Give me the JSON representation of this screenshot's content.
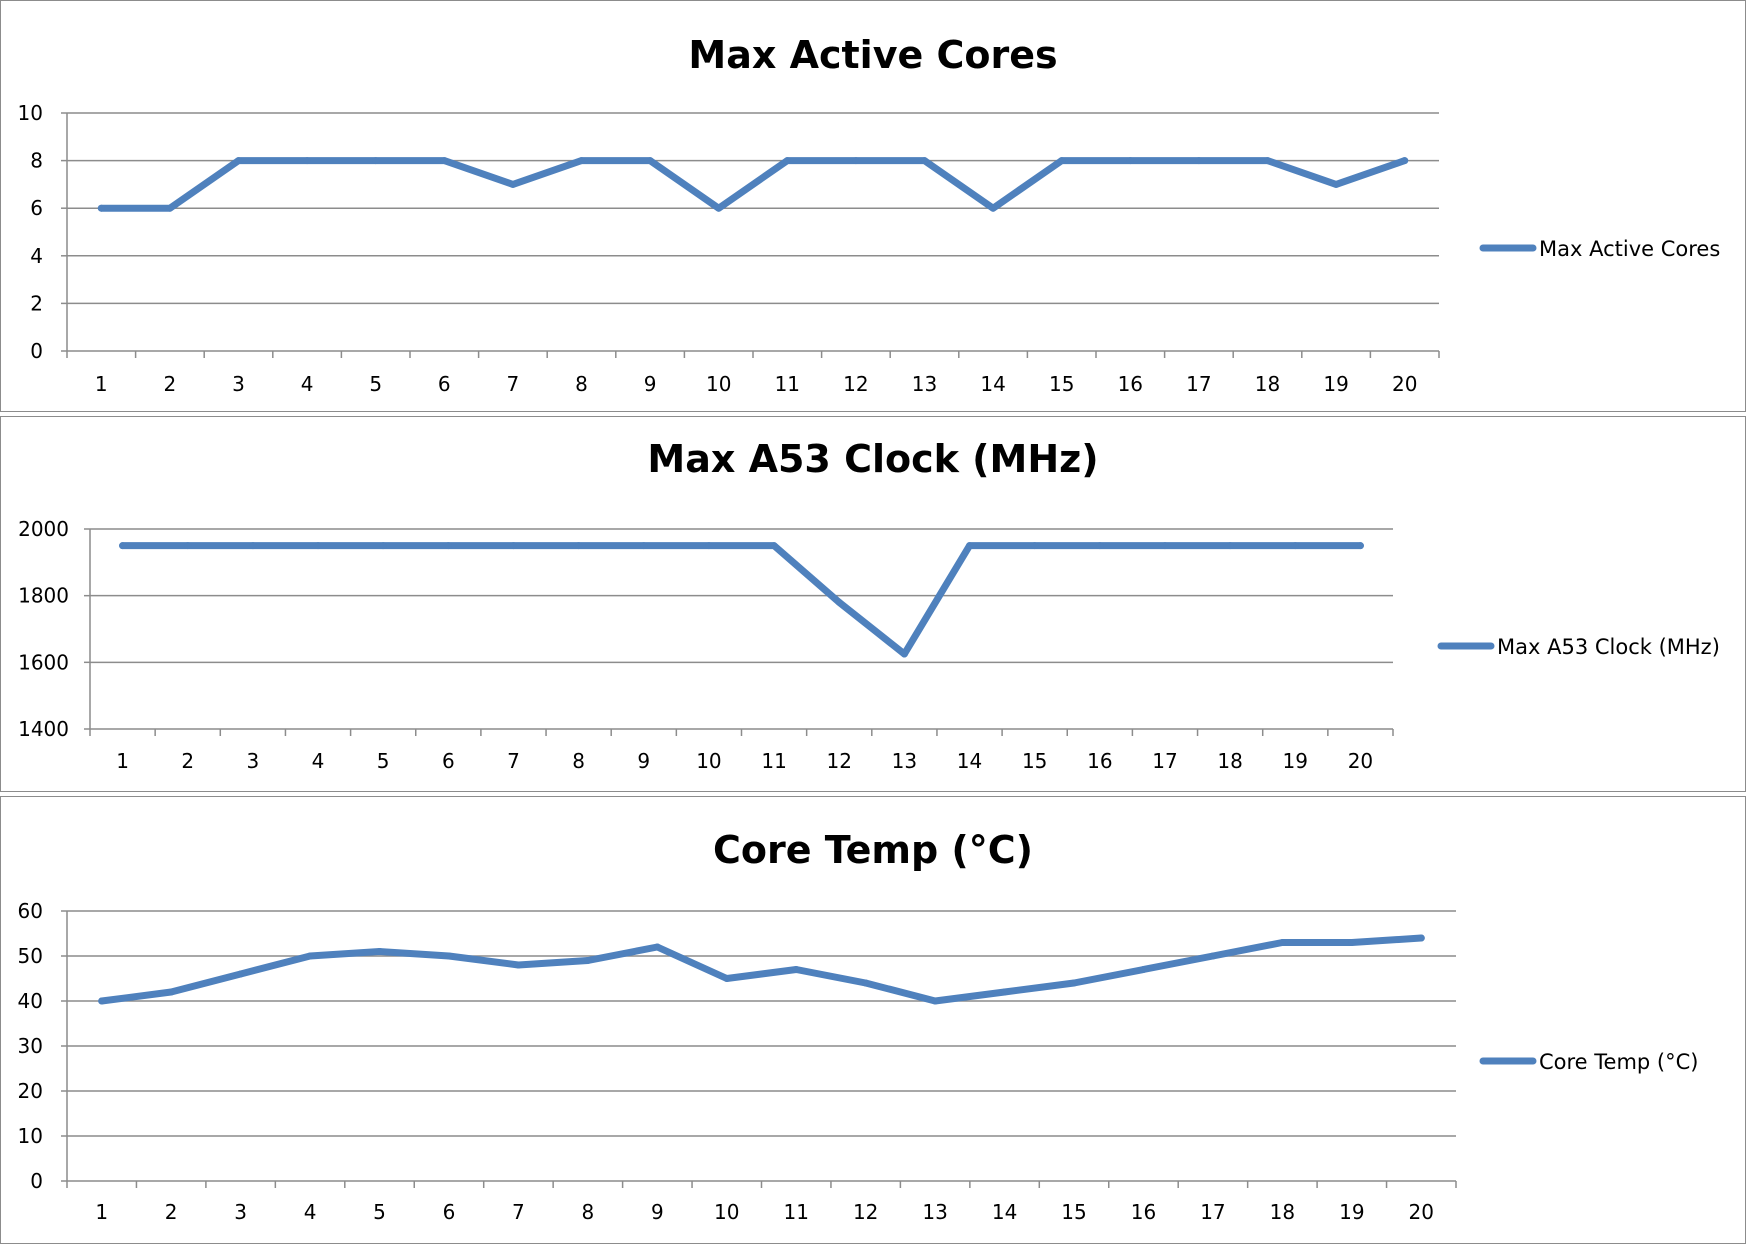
{
  "chart_data": [
    {
      "type": "line",
      "title": "Max Active Cores",
      "categories": [
        "1",
        "2",
        "3",
        "4",
        "5",
        "6",
        "7",
        "8",
        "9",
        "10",
        "11",
        "12",
        "13",
        "14",
        "15",
        "16",
        "17",
        "18",
        "19",
        "20"
      ],
      "series": [
        {
          "name": "Max Active Cores",
          "values": [
            6,
            6,
            8,
            8,
            8,
            8,
            7,
            8,
            8,
            6,
            8,
            8,
            8,
            6,
            8,
            8,
            8,
            8,
            7,
            8
          ]
        }
      ],
      "yticks": [
        "0",
        "2",
        "4",
        "6",
        "8",
        "10"
      ],
      "ylim": [
        0,
        10
      ],
      "grid": true,
      "legend": "right"
    },
    {
      "type": "line",
      "title": "Max A53 Clock (MHz)",
      "categories": [
        "1",
        "2",
        "3",
        "4",
        "5",
        "6",
        "7",
        "8",
        "9",
        "10",
        "11",
        "12",
        "13",
        "14",
        "15",
        "16",
        "17",
        "18",
        "19",
        "20"
      ],
      "series": [
        {
          "name": "Max A53 Clock (MHz)",
          "values": [
            1950,
            1950,
            1950,
            1950,
            1950,
            1950,
            1950,
            1950,
            1950,
            1950,
            1950,
            1780,
            1625,
            1950,
            1950,
            1950,
            1950,
            1950,
            1950,
            1950
          ]
        }
      ],
      "yticks": [
        "1400",
        "1600",
        "1800",
        "2000"
      ],
      "ylim": [
        1400,
        2000
      ],
      "grid": true,
      "legend": "right"
    },
    {
      "type": "line",
      "title": "Core Temp (°C)",
      "categories": [
        "1",
        "2",
        "3",
        "4",
        "5",
        "6",
        "7",
        "8",
        "9",
        "10",
        "11",
        "12",
        "13",
        "14",
        "15",
        "16",
        "17",
        "18",
        "19",
        "20"
      ],
      "series": [
        {
          "name": "Core Temp (°C)",
          "values": [
            40,
            42,
            46,
            50,
            51,
            50,
            48,
            49,
            52,
            45,
            47,
            44,
            40,
            42,
            44,
            47,
            50,
            53,
            53,
            54
          ]
        }
      ],
      "yticks": [
        "0",
        "10",
        "20",
        "30",
        "40",
        "50",
        "60"
      ],
      "ylim": [
        0,
        60
      ],
      "grid": true,
      "legend": "right"
    }
  ],
  "colors": {
    "series": "#4f81bd",
    "grid": "#8c8c8c",
    "axis": "#8c8c8c"
  }
}
